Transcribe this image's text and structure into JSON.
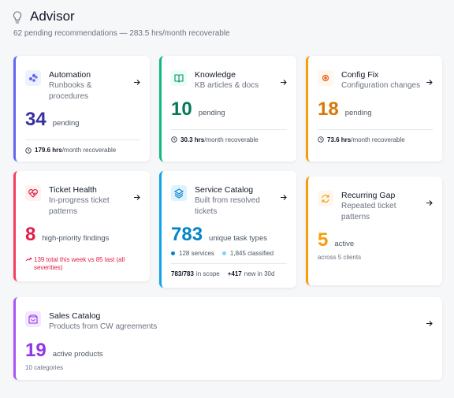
{
  "header": {
    "title": "Advisor",
    "subtitle": "62 pending recommendations — 283.5 hrs/month recoverable"
  },
  "cards": [
    {
      "title": "Automation",
      "subtitle": [
        "Runbooks &",
        "procedures"
      ],
      "value": 34,
      "unit": "pending",
      "footer": [
        {
          "strong": "179.6 hrs",
          "rest": "/month recoverable"
        }
      ]
    },
    {
      "title": "Knowledge",
      "subtitle": [
        "KB articles & docs"
      ],
      "value": 10,
      "unit": "pending",
      "footer": [
        {
          "strong": "30.3 hrs",
          "rest": "/month recoverable"
        }
      ]
    },
    {
      "title": "Config Fix",
      "subtitle": [
        "Configuration changes"
      ],
      "value": 18,
      "unit": "pending",
      "footer": [
        {
          "strong": "73.6 hrs",
          "rest": "/month recoverable"
        }
      ]
    },
    {
      "title": "Ticket Health",
      "subtitle": [
        "In-progress ticket",
        "patterns"
      ],
      "value": 8,
      "unit": "high-priority findings",
      "note": "139 total this week vs 85 last (all severities)"
    },
    {
      "title": "Service Catalog",
      "subtitle": [
        "Built from resolved",
        "tickets"
      ],
      "value": 783,
      "unit": "unique task types",
      "stats": [
        "128 services",
        "1,845 classified"
      ],
      "footer": [
        {
          "strong": "783/783",
          "rest": "in scope"
        },
        {
          "strong": "+417",
          "rest": "new in 30d"
        }
      ]
    },
    {
      "title": "Recurring Gap",
      "subtitle": [
        "Repeated ticket",
        "patterns"
      ],
      "value": 5,
      "unit": "active",
      "note": "across 5 clients"
    },
    {
      "title": "Sales Catalog",
      "subtitle": [
        "Products from CW agreements"
      ],
      "value": 19,
      "unit": "active products",
      "note": "10 categories"
    }
  ]
}
